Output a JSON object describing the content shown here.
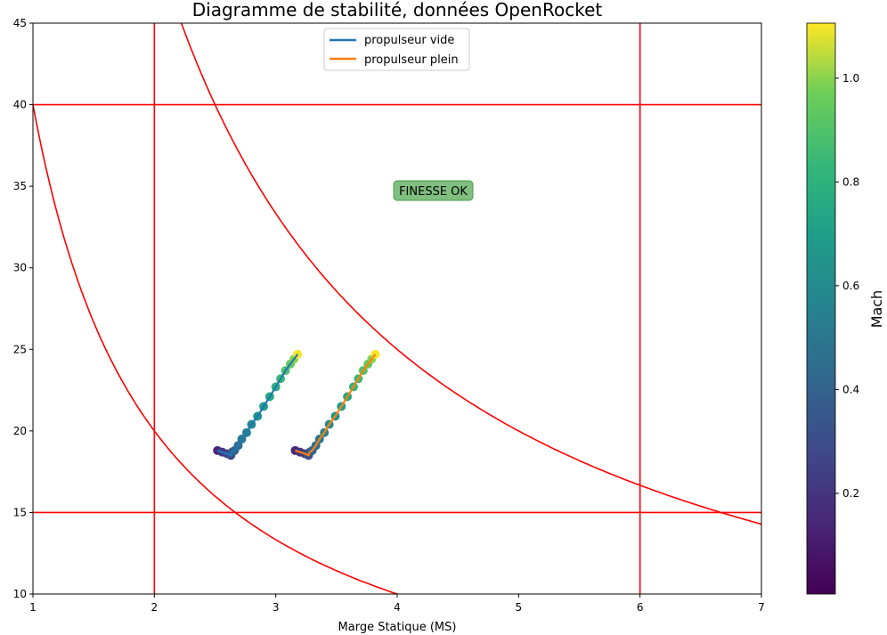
{
  "chart_data": {
    "type": "line",
    "title": "Diagramme de stabilité, données OpenRocket",
    "xlabel": "Marge Statique (MS)",
    "ylabel": "",
    "xlim": [
      1,
      7
    ],
    "ylim": [
      10,
      45
    ],
    "xticks": [
      "1",
      "2",
      "3",
      "4",
      "5",
      "6",
      "7"
    ],
    "yticks": [
      "10",
      "15",
      "20",
      "25",
      "30",
      "35",
      "40",
      "45"
    ],
    "grid": false,
    "legend_placement": "top-center",
    "annotation": {
      "text": "FINESSE OK",
      "x": 4.3,
      "y": 34.6,
      "color": "#7fbf7f"
    },
    "reference_lines": {
      "vertical": [
        2,
        6
      ],
      "horizontal": [
        15,
        40
      ],
      "hyperbolas": [
        {
          "k": 40,
          "label": ""
        },
        {
          "k": 100,
          "label": ""
        }
      ],
      "color": "#ff0000"
    },
    "series": [
      {
        "name": "propulseur vide",
        "color": "#1f77b4",
        "x": [
          2.52,
          2.56,
          2.6,
          2.63,
          2.64,
          2.66,
          2.69,
          2.72,
          2.76,
          2.8,
          2.85,
          2.9,
          2.95,
          3.0,
          3.04,
          3.08,
          3.12,
          3.15,
          3.18
        ],
        "y": [
          18.8,
          18.7,
          18.6,
          18.5,
          18.7,
          18.8,
          19.1,
          19.5,
          19.9,
          20.4,
          20.9,
          21.5,
          22.1,
          22.7,
          23.2,
          23.7,
          24.1,
          24.4,
          24.7
        ],
        "mach": [
          0.15,
          0.2,
          0.25,
          0.3,
          0.35,
          0.4,
          0.45,
          0.5,
          0.55,
          0.6,
          0.65,
          0.7,
          0.75,
          0.8,
          0.85,
          0.9,
          0.95,
          1.0,
          1.1
        ]
      },
      {
        "name": "propulseur plein",
        "color": "#ff7f0e",
        "x": [
          3.16,
          3.2,
          3.24,
          3.27,
          3.28,
          3.3,
          3.33,
          3.36,
          3.4,
          3.44,
          3.49,
          3.54,
          3.59,
          3.64,
          3.68,
          3.72,
          3.76,
          3.79,
          3.82
        ],
        "y": [
          18.8,
          18.7,
          18.6,
          18.5,
          18.7,
          18.8,
          19.1,
          19.5,
          19.9,
          20.4,
          20.9,
          21.5,
          22.1,
          22.7,
          23.2,
          23.7,
          24.1,
          24.4,
          24.7
        ],
        "mach": [
          0.15,
          0.2,
          0.25,
          0.3,
          0.35,
          0.4,
          0.45,
          0.5,
          0.55,
          0.6,
          0.65,
          0.7,
          0.75,
          0.8,
          0.85,
          0.9,
          0.95,
          1.0,
          1.1
        ]
      }
    ],
    "colorbar": {
      "label": "Mach",
      "colormap": "viridis",
      "range": [
        0.006,
        1.106
      ],
      "ticks": [
        "0.2",
        "0.4",
        "0.6",
        "0.8",
        "1.0"
      ]
    }
  }
}
